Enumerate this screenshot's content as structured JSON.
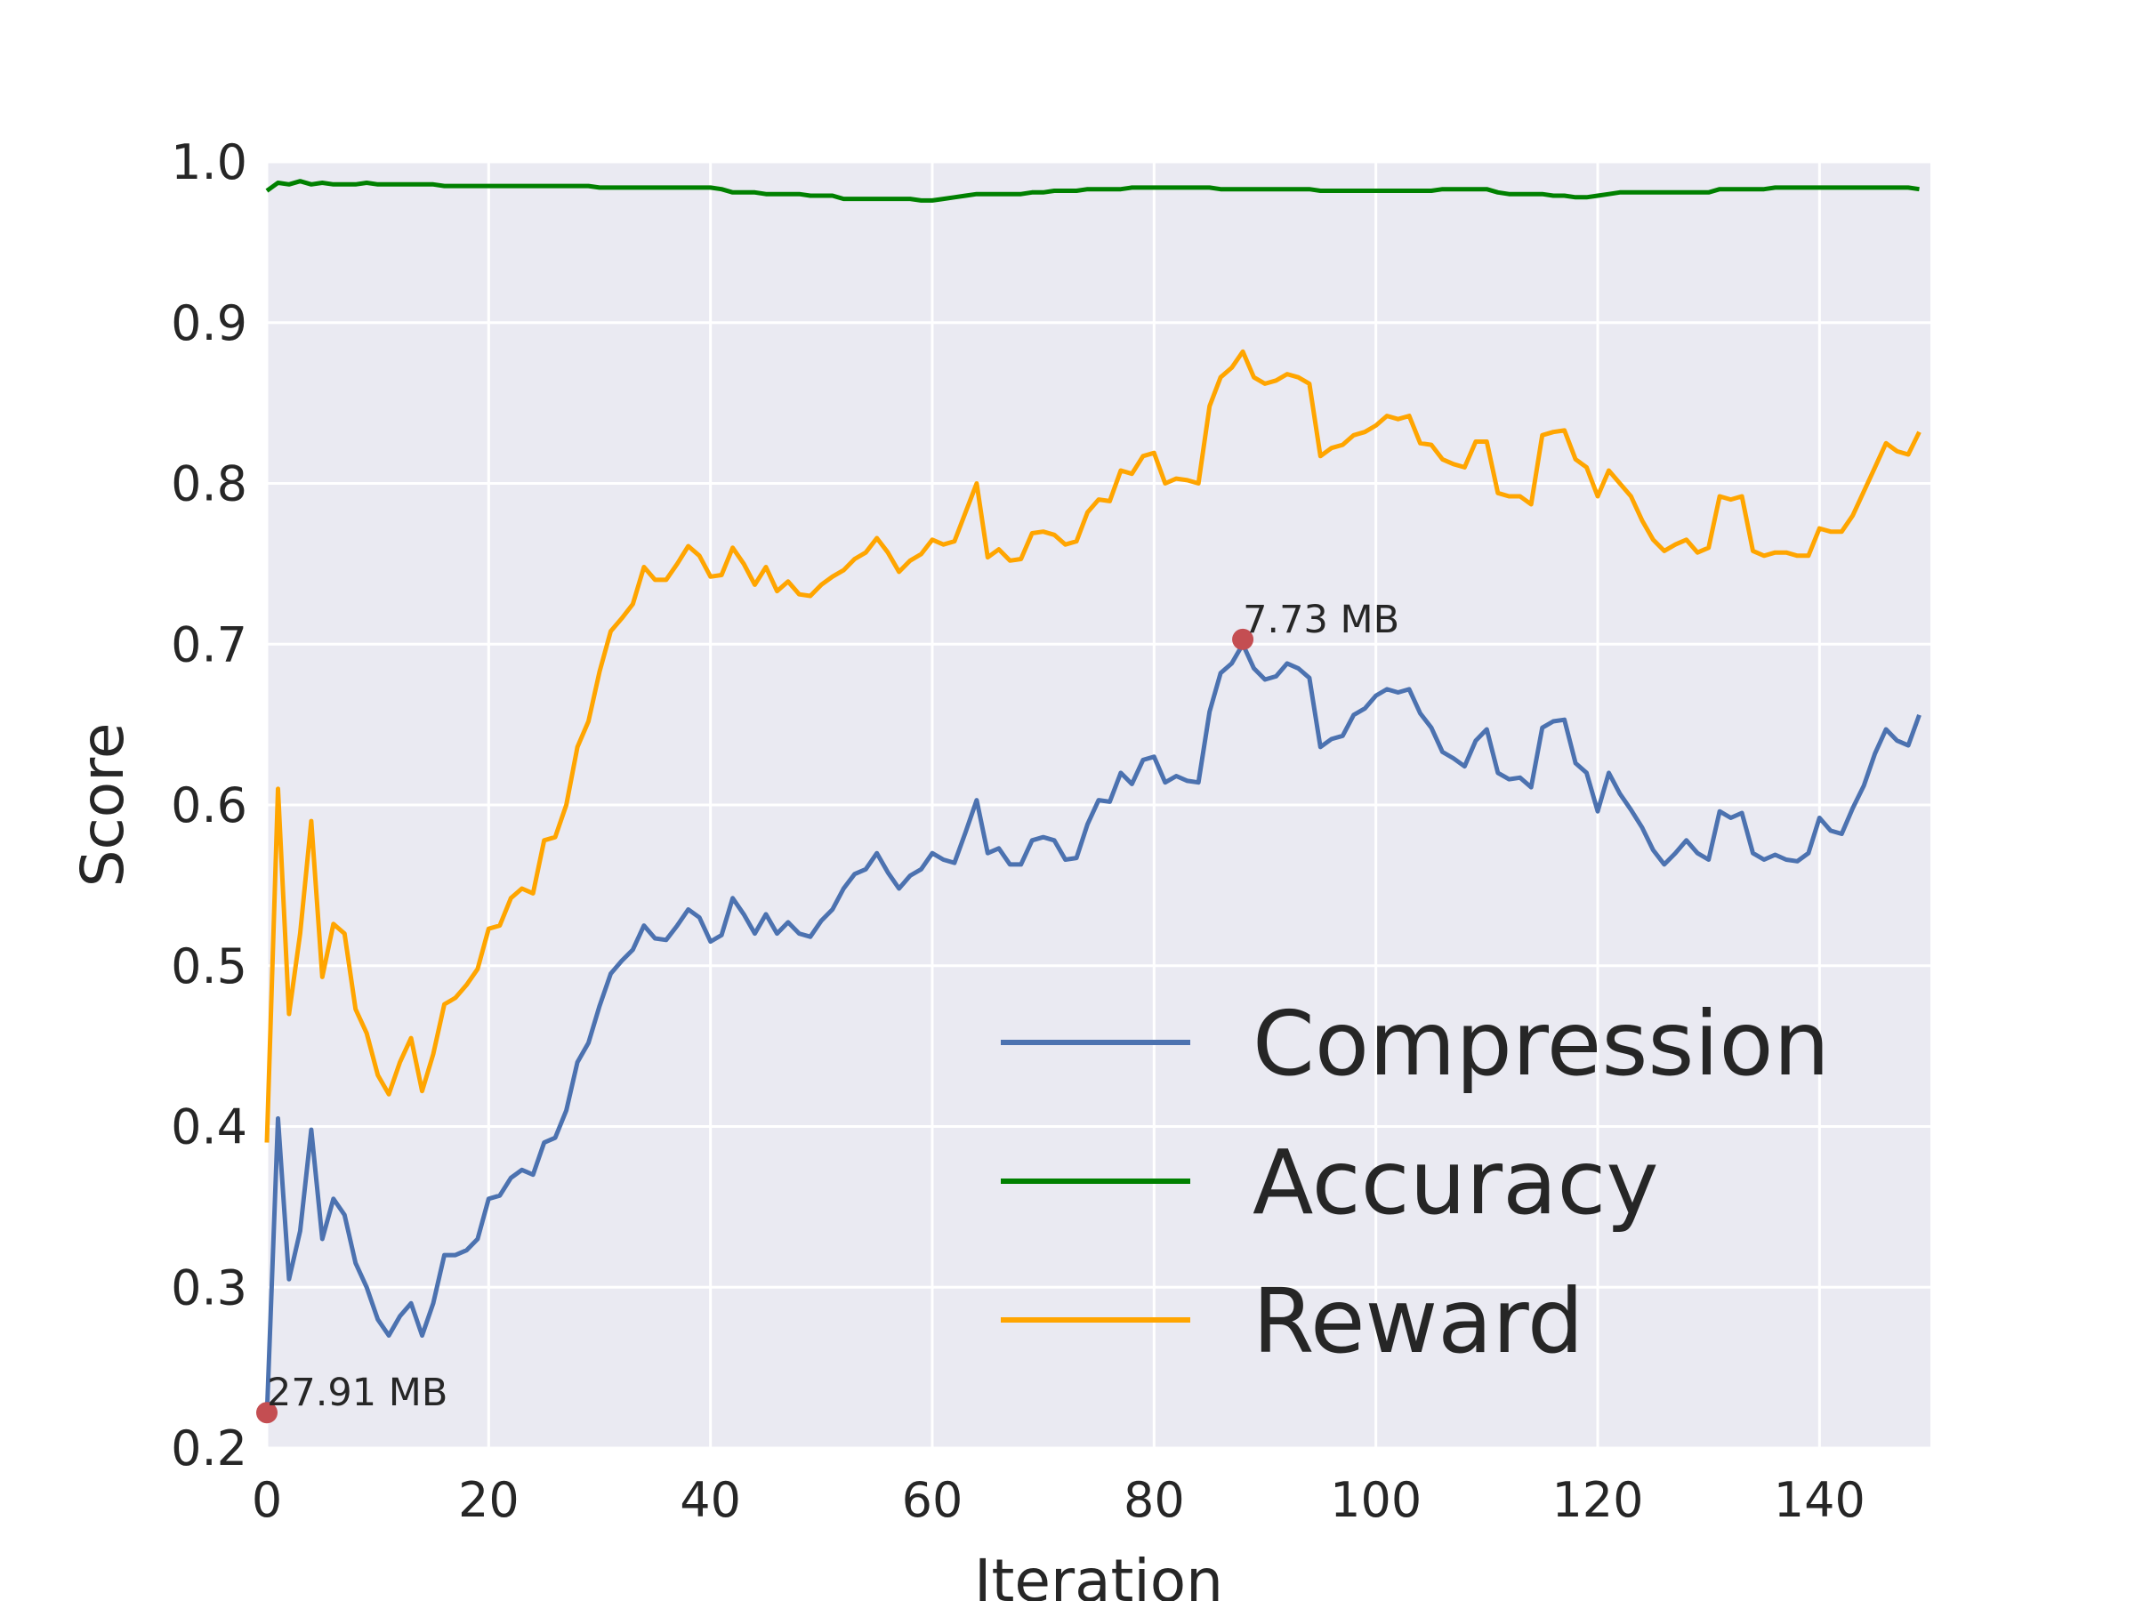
{
  "chart_data": {
    "type": "line",
    "title": "",
    "xlabel": "Iteration",
    "ylabel": "Score",
    "xlim": [
      0,
      150
    ],
    "ylim": [
      0.2,
      1.0
    ],
    "xticks": [
      0,
      20,
      40,
      60,
      80,
      100,
      120,
      140
    ],
    "yticks": [
      0.2,
      0.3,
      0.4,
      0.5,
      0.6,
      0.7,
      0.8,
      0.9,
      1.0
    ],
    "tick_labels_x": [
      "0",
      "20",
      "40",
      "60",
      "80",
      "100",
      "120",
      "140"
    ],
    "tick_labels_y": [
      "0.2",
      "0.3",
      "0.4",
      "0.5",
      "0.6",
      "0.7",
      "0.8",
      "0.9",
      "1.0"
    ],
    "grid": true,
    "legend_position": "lower-right",
    "x": [
      0,
      1,
      2,
      3,
      4,
      5,
      6,
      7,
      8,
      9,
      10,
      11,
      12,
      13,
      14,
      15,
      16,
      17,
      18,
      19,
      20,
      21,
      22,
      23,
      24,
      25,
      26,
      27,
      28,
      29,
      30,
      31,
      32,
      33,
      34,
      35,
      36,
      37,
      38,
      39,
      40,
      41,
      42,
      43,
      44,
      45,
      46,
      47,
      48,
      49,
      50,
      51,
      52,
      53,
      54,
      55,
      56,
      57,
      58,
      59,
      60,
      61,
      62,
      63,
      64,
      65,
      66,
      67,
      68,
      69,
      70,
      71,
      72,
      73,
      74,
      75,
      76,
      77,
      78,
      79,
      80,
      81,
      82,
      83,
      84,
      85,
      86,
      87,
      88,
      89,
      90,
      91,
      92,
      93,
      94,
      95,
      96,
      97,
      98,
      99,
      100,
      101,
      102,
      103,
      104,
      105,
      106,
      107,
      108,
      109,
      110,
      111,
      112,
      113,
      114,
      115,
      116,
      117,
      118,
      119,
      120,
      121,
      122,
      123,
      124,
      125,
      126,
      127,
      128,
      129,
      130,
      131,
      132,
      133,
      134,
      135,
      136,
      137,
      138,
      139,
      140,
      141,
      142,
      143,
      144,
      145,
      146,
      147,
      148,
      149
    ],
    "series": [
      {
        "name": "Compression",
        "color": "#4c72b0",
        "values": [
          0.22,
          0.405,
          0.305,
          0.335,
          0.398,
          0.33,
          0.355,
          0.345,
          0.315,
          0.3,
          0.28,
          0.27,
          0.282,
          0.29,
          0.27,
          0.29,
          0.32,
          0.32,
          0.323,
          0.33,
          0.355,
          0.357,
          0.368,
          0.373,
          0.37,
          0.39,
          0.393,
          0.41,
          0.44,
          0.452,
          0.475,
          0.495,
          0.503,
          0.51,
          0.525,
          0.517,
          0.516,
          0.525,
          0.535,
          0.53,
          0.515,
          0.519,
          0.542,
          0.532,
          0.52,
          0.532,
          0.52,
          0.527,
          0.52,
          0.518,
          0.528,
          0.535,
          0.548,
          0.557,
          0.56,
          0.57,
          0.558,
          0.548,
          0.556,
          0.56,
          0.57,
          0.566,
          0.564,
          0.583,
          0.603,
          0.57,
          0.573,
          0.563,
          0.563,
          0.578,
          0.58,
          0.578,
          0.566,
          0.567,
          0.588,
          0.603,
          0.602,
          0.62,
          0.613,
          0.628,
          0.63,
          0.614,
          0.618,
          0.615,
          0.614,
          0.658,
          0.682,
          0.688,
          0.7,
          0.685,
          0.678,
          0.68,
          0.688,
          0.685,
          0.679,
          0.636,
          0.641,
          0.643,
          0.656,
          0.66,
          0.668,
          0.672,
          0.67,
          0.672,
          0.657,
          0.648,
          0.633,
          0.629,
          0.624,
          0.64,
          0.647,
          0.62,
          0.616,
          0.617,
          0.611,
          0.648,
          0.652,
          0.653,
          0.626,
          0.62,
          0.596,
          0.62,
          0.607,
          0.597,
          0.586,
          0.572,
          0.563,
          0.57,
          0.578,
          0.57,
          0.566,
          0.596,
          0.592,
          0.595,
          0.57,
          0.566,
          0.569,
          0.566,
          0.565,
          0.57,
          0.592,
          0.584,
          0.582,
          0.598,
          0.612,
          0.632,
          0.647,
          0.64,
          0.637,
          0.656
        ]
      },
      {
        "name": "Accuracy",
        "color": "#008000",
        "values": [
          0.982,
          0.987,
          0.986,
          0.988,
          0.986,
          0.987,
          0.986,
          0.986,
          0.986,
          0.987,
          0.986,
          0.986,
          0.986,
          0.986,
          0.986,
          0.986,
          0.985,
          0.985,
          0.985,
          0.985,
          0.985,
          0.985,
          0.985,
          0.985,
          0.985,
          0.985,
          0.985,
          0.985,
          0.985,
          0.985,
          0.984,
          0.984,
          0.984,
          0.984,
          0.984,
          0.984,
          0.984,
          0.984,
          0.984,
          0.984,
          0.984,
          0.983,
          0.981,
          0.981,
          0.981,
          0.98,
          0.98,
          0.98,
          0.98,
          0.979,
          0.979,
          0.979,
          0.977,
          0.977,
          0.977,
          0.977,
          0.977,
          0.977,
          0.977,
          0.976,
          0.976,
          0.977,
          0.978,
          0.979,
          0.98,
          0.98,
          0.98,
          0.98,
          0.98,
          0.981,
          0.981,
          0.982,
          0.982,
          0.982,
          0.983,
          0.983,
          0.983,
          0.983,
          0.984,
          0.984,
          0.984,
          0.984,
          0.984,
          0.984,
          0.984,
          0.984,
          0.983,
          0.983,
          0.983,
          0.983,
          0.983,
          0.983,
          0.983,
          0.983,
          0.983,
          0.982,
          0.982,
          0.982,
          0.982,
          0.982,
          0.982,
          0.982,
          0.982,
          0.982,
          0.982,
          0.982,
          0.983,
          0.983,
          0.983,
          0.983,
          0.983,
          0.981,
          0.98,
          0.98,
          0.98,
          0.98,
          0.979,
          0.979,
          0.978,
          0.978,
          0.979,
          0.98,
          0.981,
          0.981,
          0.981,
          0.981,
          0.981,
          0.981,
          0.981,
          0.981,
          0.981,
          0.983,
          0.983,
          0.983,
          0.983,
          0.983,
          0.984,
          0.984,
          0.984,
          0.984,
          0.984,
          0.984,
          0.984,
          0.984,
          0.984,
          0.984,
          0.984,
          0.984,
          0.984,
          0.983
        ]
      },
      {
        "name": "Reward",
        "color": "#ffa500",
        "values": [
          0.39,
          0.61,
          0.47,
          0.52,
          0.59,
          0.493,
          0.526,
          0.52,
          0.473,
          0.458,
          0.432,
          0.42,
          0.44,
          0.455,
          0.422,
          0.445,
          0.476,
          0.48,
          0.488,
          0.498,
          0.523,
          0.525,
          0.542,
          0.548,
          0.545,
          0.578,
          0.58,
          0.6,
          0.636,
          0.652,
          0.683,
          0.708,
          0.716,
          0.725,
          0.748,
          0.74,
          0.74,
          0.75,
          0.761,
          0.755,
          0.742,
          0.743,
          0.76,
          0.75,
          0.737,
          0.748,
          0.733,
          0.739,
          0.731,
          0.73,
          0.737,
          0.742,
          0.746,
          0.753,
          0.757,
          0.766,
          0.757,
          0.745,
          0.752,
          0.756,
          0.765,
          0.762,
          0.764,
          0.782,
          0.8,
          0.754,
          0.759,
          0.752,
          0.753,
          0.769,
          0.77,
          0.768,
          0.762,
          0.764,
          0.782,
          0.79,
          0.789,
          0.808,
          0.806,
          0.817,
          0.819,
          0.8,
          0.803,
          0.802,
          0.8,
          0.848,
          0.866,
          0.872,
          0.882,
          0.866,
          0.862,
          0.864,
          0.868,
          0.866,
          0.862,
          0.817,
          0.822,
          0.824,
          0.83,
          0.832,
          0.836,
          0.842,
          0.84,
          0.842,
          0.825,
          0.824,
          0.815,
          0.812,
          0.81,
          0.826,
          0.826,
          0.794,
          0.792,
          0.792,
          0.787,
          0.83,
          0.832,
          0.833,
          0.815,
          0.81,
          0.792,
          0.808,
          0.8,
          0.792,
          0.777,
          0.765,
          0.758,
          0.762,
          0.765,
          0.757,
          0.76,
          0.792,
          0.79,
          0.792,
          0.758,
          0.755,
          0.757,
          0.757,
          0.755,
          0.755,
          0.772,
          0.77,
          0.77,
          0.78,
          0.795,
          0.81,
          0.825,
          0.82,
          0.818,
          0.832
        ]
      }
    ],
    "annotations": [
      {
        "text": "27.91 MB",
        "x": 0,
        "y": 0.222
      },
      {
        "text": "7.73 MB",
        "x": 88,
        "y": 0.703
      }
    ]
  }
}
